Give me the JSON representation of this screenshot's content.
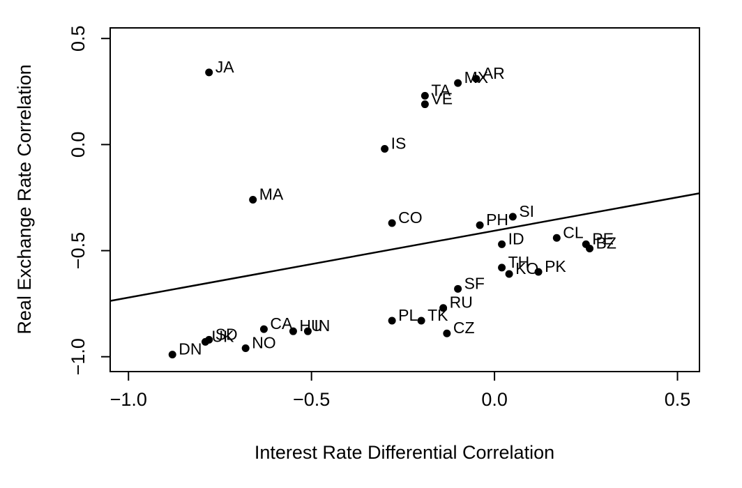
{
  "chart_data": {
    "type": "scatter",
    "title": "",
    "xlabel": "Interest Rate Differential Correlation",
    "ylabel": "Real Exchange Rate Correlation",
    "xlim": [
      -1.05,
      0.56
    ],
    "ylim": [
      -1.07,
      0.55
    ],
    "grid": false,
    "legend": "none",
    "point_color": "#000000",
    "line_color": "#000000",
    "axis_color": "#000000",
    "background_color": "#ffffff",
    "x_ticks": {
      "values": [
        -1.0,
        -0.5,
        0.0,
        0.5
      ],
      "labels": [
        "−1.0",
        "−0.5",
        "0.0",
        "0.5"
      ]
    },
    "y_ticks": {
      "values": [
        -1.0,
        -0.5,
        0.0,
        0.5
      ],
      "labels": [
        "−1.0",
        "−0.5",
        "0.0",
        "0.5"
      ]
    },
    "regression_line": {
      "slope": 0.315,
      "intercept": -0.406
    },
    "points": [
      {
        "label": "JA",
        "x": -0.78,
        "y": 0.34
      },
      {
        "label": "MX",
        "x": -0.1,
        "y": 0.29
      },
      {
        "label": "AR",
        "x": -0.05,
        "y": 0.31
      },
      {
        "label": "TA",
        "x": -0.19,
        "y": 0.23
      },
      {
        "label": "VE",
        "x": -0.19,
        "y": 0.19
      },
      {
        "label": "IS",
        "x": -0.3,
        "y": -0.02
      },
      {
        "label": "MA",
        "x": -0.66,
        "y": -0.26
      },
      {
        "label": "CO",
        "x": -0.28,
        "y": -0.37
      },
      {
        "label": "PH",
        "x": -0.04,
        "y": -0.38
      },
      {
        "label": "SI",
        "x": 0.05,
        "y": -0.34
      },
      {
        "label": "ID",
        "x": 0.02,
        "y": -0.47
      },
      {
        "label": "CL",
        "x": 0.17,
        "y": -0.44
      },
      {
        "label": "PE",
        "x": 0.25,
        "y": -0.47
      },
      {
        "label": "BZ",
        "x": 0.26,
        "y": -0.49
      },
      {
        "label": "TH",
        "x": 0.02,
        "y": -0.58
      },
      {
        "label": "KO",
        "x": 0.04,
        "y": -0.61
      },
      {
        "label": "PK",
        "x": 0.12,
        "y": -0.6
      },
      {
        "label": "SF",
        "x": -0.1,
        "y": -0.68
      },
      {
        "label": "RU",
        "x": -0.14,
        "y": -0.77
      },
      {
        "label": "PL",
        "x": -0.28,
        "y": -0.83
      },
      {
        "label": "TK",
        "x": -0.2,
        "y": -0.83
      },
      {
        "label": "CZ",
        "x": -0.13,
        "y": -0.89
      },
      {
        "label": "DN",
        "x": -0.88,
        "y": -0.99
      },
      {
        "label": "UK",
        "x": -0.79,
        "y": -0.93
      },
      {
        "label": "SD",
        "x": -0.78,
        "y": -0.92
      },
      {
        "label": "NO",
        "x": -0.68,
        "y": -0.96
      },
      {
        "label": "CA",
        "x": -0.63,
        "y": -0.87
      },
      {
        "label": "HU",
        "x": -0.55,
        "y": -0.88
      },
      {
        "label": "IN",
        "x": -0.51,
        "y": -0.88
      }
    ]
  }
}
